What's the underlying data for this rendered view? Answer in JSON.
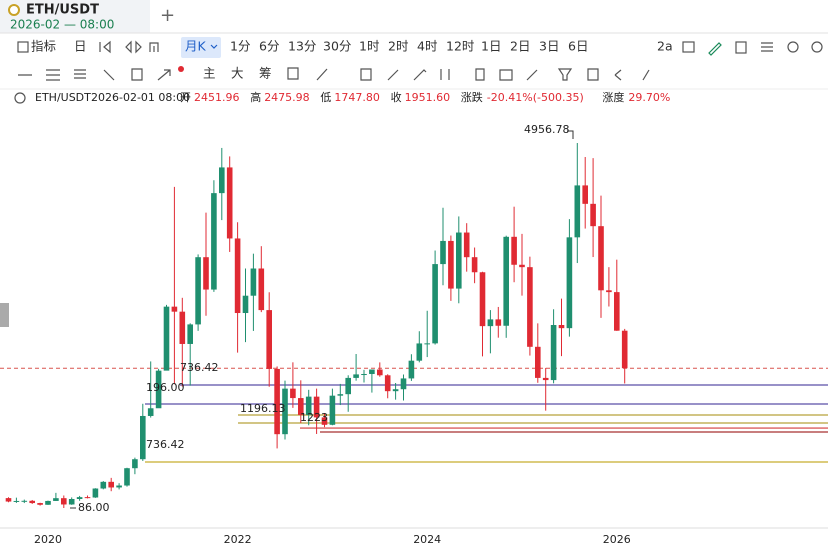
{
  "header": {
    "symbol": "ETH/USDT",
    "time": "2026-02 — 08:00"
  },
  "toolbar": {
    "indicator": "指标",
    "day": "日",
    "period": "月K",
    "intervals": [
      "1分",
      "6分",
      "13分",
      "30分",
      "1时",
      "2时",
      "4时",
      "12时",
      "1日",
      "2日",
      "3日",
      "6日"
    ]
  },
  "drawing_tools": {
    "labels": [
      "主",
      "大",
      "筹"
    ]
  },
  "info": {
    "symbol": "ETH/USDT",
    "time": "2026-02-01 08:00",
    "fields": [
      {
        "label": "开",
        "value": "2451.96"
      },
      {
        "label": "高",
        "value": "2475.98"
      },
      {
        "label": "低",
        "value": "1747.80"
      },
      {
        "label": "收",
        "value": "1951.60"
      },
      {
        "label": "涨跌",
        "value": "-20.41%(-500.35)"
      },
      {
        "label": "涨度",
        "value": "29.70%"
      }
    ]
  },
  "chart_data": {
    "type": "candlestick",
    "categories": [
      null,
      null,
      null,
      null,
      null,
      "2020",
      null,
      null,
      null,
      null,
      null,
      null,
      null,
      null,
      null,
      null,
      null,
      null,
      null,
      null,
      null,
      null,
      null,
      null,
      null,
      null,
      null,
      null,
      null,
      "2022",
      null,
      null,
      null,
      null,
      null,
      null,
      null,
      null,
      null,
      null,
      null,
      null,
      null,
      null,
      null,
      null,
      null,
      null,
      null,
      null,
      null,
      null,
      null,
      "2024",
      null,
      null,
      null,
      null,
      null,
      null,
      null,
      null,
      null,
      null,
      null,
      null,
      null,
      null,
      null,
      null,
      null,
      null,
      null,
      null,
      null,
      null,
      null,
      "2026",
      null
    ],
    "open": [
      218,
      172,
      180,
      182,
      152,
      129,
      180,
      217,
      133,
      206,
      231,
      226,
      346,
      435,
      360,
      386,
      617,
      737,
      1314,
      1417,
      1919,
      2773,
      2706,
      2275,
      2536,
      3433,
      3001,
      4288,
      4631,
      3683,
      2688,
      2919,
      3282,
      2727,
      1942,
      1071,
      1679,
      1553,
      1328,
      1572,
      1295,
      1196,
      1585,
      1605,
      1822,
      1869,
      1874,
      1934,
      1857,
      1645,
      1671,
      1815,
      2052,
      2282,
      2283,
      3341,
      3650,
      3014,
      3762,
      3433,
      3232,
      2513,
      2603,
      2518,
      3705,
      3332,
      3300,
      2237,
      1822,
      1793,
      2528,
      2486,
      3698,
      4391,
      4145,
      3847,
      2991,
      2967,
      2451.96
    ],
    "high": [
      229,
      224,
      198,
      193,
      156,
      185,
      288,
      253,
      227,
      247,
      253,
      350,
      445,
      488,
      417,
      623,
      758,
      1477,
      2042,
      1943,
      2797,
      4372,
      2891,
      2551,
      3470,
      4027,
      4460,
      4891,
      4778,
      3900,
      3282,
      3480,
      3580,
      2965,
      1975,
      1785,
      2030,
      1790,
      1663,
      1679,
      1352,
      1679,
      1742,
      1857,
      2141,
      1929,
      1929,
      2029,
      1871,
      1754,
      1867,
      2138,
      2445,
      2718,
      3522,
      4093,
      3722,
      3977,
      3887,
      3562,
      3238,
      2727,
      2769,
      3720,
      4107,
      3745,
      3440,
      2550,
      1955,
      2738,
      2880,
      3941,
      4956.78,
      4770,
      4755,
      4255,
      3300,
      3400,
      2475.98
    ],
    "low": [
      163,
      154,
      152,
      140,
      118,
      127,
      180,
      86,
      128,
      182,
      215,
      221,
      335,
      310,
      334,
      371,
      537,
      714,
      1293,
      1436,
      1930,
      1737,
      1707,
      1719,
      2450,
      2652,
      2970,
      3928,
      3503,
      2159,
      2300,
      2449,
      2700,
      1704,
      881,
      1000,
      1422,
      1220,
      1190,
      1074,
      1165,
      1190,
      1460,
      1370,
      1785,
      1760,
      1626,
      1838,
      1550,
      1532,
      1520,
      1782,
      2030,
      2100,
      2267,
      3058,
      2850,
      2818,
      3240,
      3086,
      2110,
      2150,
      2359,
      2357,
      3099,
      2920,
      2120,
      1757,
      1385,
      1750,
      2112,
      2373,
      3355,
      3815,
      3435,
      2623,
      2775,
      2450,
      1747.8
    ],
    "close": [
      172,
      180,
      182,
      152,
      129,
      180,
      217,
      133,
      206,
      231,
      226,
      346,
      435,
      360,
      386,
      617,
      737,
      1314,
      1417,
      1919,
      2773,
      2706,
      2275,
      2536,
      3433,
      3001,
      4288,
      4631,
      3683,
      2688,
      2919,
      3282,
      2727,
      1942,
      1071,
      1679,
      1553,
      1328,
      1572,
      1295,
      1196,
      1585,
      1605,
      1822,
      1869,
      1874,
      1934,
      1857,
      1645,
      1671,
      1815,
      2052,
      2282,
      2283,
      3341,
      3650,
      3014,
      3762,
      3433,
      3232,
      2513,
      2603,
      2518,
      3705,
      3332,
      3300,
      2237,
      1822,
      1793,
      2528,
      2486,
      3698,
      4391,
      4145,
      3847,
      2991,
      2967,
      2451.96,
      1951.6
    ],
    "up_color": "#1f8f6f",
    "down_color": "#e02a33",
    "ylim": [
      -181,
      5424
    ],
    "last_price_color": "#d9534f",
    "levels": [
      {
        "value": 1727,
        "color": "#5a4fa8"
      },
      {
        "value": 1474,
        "color": "#5a4fa8"
      },
      {
        "value": 1327,
        "color": "#b7a23a"
      },
      {
        "value": 1220,
        "color": "#b7a23a"
      },
      {
        "value": 1153,
        "color": "#d33a3a"
      },
      {
        "value": 1100,
        "color": "#a83232"
      },
      {
        "value": 700,
        "color": "#c8ae2e"
      }
    ],
    "annotations": [
      "4956.78",
      "736.42",
      "196.00",
      "1196.13",
      "1223",
      "736.42",
      "86.00"
    ]
  }
}
